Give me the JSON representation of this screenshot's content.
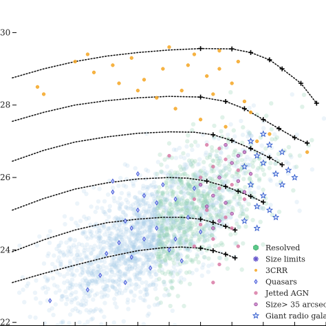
{
  "chart_data": {
    "type": "scatter",
    "title": "",
    "xlabel": "",
    "ylabel": "",
    "y_ticks": [
      22,
      24,
      26,
      28,
      30
    ],
    "y_tick_labels": [
      "22",
      "24",
      "26",
      "28",
      "30"
    ],
    "x_ticks": [
      0.5,
      1.0,
      1.5,
      2.0,
      2.5,
      3.0,
      3.5,
      4.0,
      4.5,
      5.0
    ],
    "ylim": [
      21.9,
      30.9
    ],
    "xlim": [
      0.0,
      5.0
    ],
    "grid": false,
    "legend_placement": "bottom-right",
    "series": [
      {
        "name": "Resolved",
        "marker": "hexagon",
        "color": "#2e9b57"
      },
      {
        "name": "Size limits",
        "marker": "asterisk",
        "color": "#6a5acd"
      },
      {
        "name": "3CRR",
        "marker": "circle",
        "color": "#f5a623"
      },
      {
        "name": "Quasars",
        "marker": "diamond",
        "color": "#3a4fd6"
      },
      {
        "name": "Jetted AGN",
        "marker": "circle",
        "color": "#d97aa6"
      },
      {
        "name": "Size> 35 arcsec",
        "marker": "circle",
        "color": "#8b1a8b"
      },
      {
        "name": "Giant radio galax",
        "marker": "star",
        "color": "#2b55c9"
      }
    ],
    "tracks": [
      {
        "x": [
          0.0,
          0.5,
          1.0,
          1.5,
          2.0,
          2.5,
          3.0,
          3.5,
          3.8,
          4.1,
          4.3,
          4.6,
          4.85
        ],
        "y": [
          28.75,
          29.0,
          29.2,
          29.35,
          29.45,
          29.52,
          29.56,
          29.55,
          29.45,
          29.25,
          29.0,
          28.6,
          28.05
        ]
      },
      {
        "x": [
          0.0,
          0.5,
          1.0,
          1.5,
          2.0,
          2.5,
          3.0,
          3.4,
          3.7,
          4.0,
          4.25,
          4.5,
          4.7
        ],
        "y": [
          27.55,
          27.8,
          28.0,
          28.12,
          28.2,
          28.24,
          28.22,
          28.1,
          27.9,
          27.6,
          27.35,
          27.1,
          26.95
        ]
      },
      {
        "x": [
          0.0,
          0.5,
          1.0,
          1.5,
          2.0,
          2.5,
          2.9,
          3.2,
          3.5,
          3.8,
          4.1,
          4.3
        ],
        "y": [
          26.45,
          26.75,
          26.98,
          27.12,
          27.22,
          27.26,
          27.25,
          27.18,
          27.02,
          26.8,
          26.55,
          26.35
        ]
      },
      {
        "x": [
          0.0,
          0.5,
          1.0,
          1.5,
          2.0,
          2.5,
          2.8,
          3.1,
          3.4,
          3.6,
          3.8,
          4.0
        ],
        "y": [
          25.1,
          25.42,
          25.68,
          25.85,
          25.96,
          26.0,
          25.98,
          25.9,
          25.75,
          25.62,
          25.48,
          25.32
        ]
      },
      {
        "x": [
          0.0,
          0.5,
          1.0,
          1.5,
          2.0,
          2.4,
          2.7,
          3.0,
          3.2,
          3.4,
          3.55
        ],
        "y": [
          23.95,
          24.28,
          24.55,
          24.75,
          24.85,
          24.9,
          24.9,
          24.85,
          24.76,
          24.65,
          24.55
        ]
      },
      {
        "x": [
          0.0,
          0.5,
          1.0,
          1.5,
          2.0,
          2.4,
          2.7,
          3.0,
          3.2,
          3.4,
          3.55
        ],
        "y": [
          23.1,
          23.35,
          23.58,
          23.8,
          23.98,
          24.06,
          24.08,
          24.05,
          23.98,
          23.88,
          23.78
        ]
      }
    ],
    "points": {
      "3CRR": [
        [
          0.4,
          28.5
        ],
        [
          0.5,
          28.3
        ],
        [
          1.0,
          29.2
        ],
        [
          1.3,
          28.9
        ],
        [
          1.6,
          29.1
        ],
        [
          1.9,
          29.3
        ],
        [
          2.1,
          28.7
        ],
        [
          2.4,
          29.0
        ],
        [
          2.7,
          28.4
        ],
        [
          2.9,
          29.4
        ],
        [
          3.1,
          28.8
        ],
        [
          3.3,
          29.0
        ],
        [
          3.5,
          28.6
        ],
        [
          3.6,
          29.2
        ],
        [
          3.8,
          27.8
        ],
        [
          2.3,
          28.2
        ],
        [
          2.6,
          27.9
        ],
        [
          2.0,
          28.4
        ],
        [
          3.0,
          27.6
        ],
        [
          3.4,
          27.4
        ],
        [
          3.7,
          28.1
        ],
        [
          1.7,
          28.6
        ],
        [
          2.8,
          29.1
        ],
        [
          3.2,
          28.3
        ],
        [
          4.1,
          27.2
        ],
        [
          3.9,
          27.0
        ],
        [
          2.5,
          29.6
        ],
        [
          3.3,
          29.5
        ],
        [
          1.2,
          29.4
        ],
        [
          4.7,
          26.7
        ]
      ],
      "Quasars": [
        [
          1.6,
          25.6
        ],
        [
          1.8,
          24.8
        ],
        [
          2.0,
          25.1
        ],
        [
          2.1,
          24.3
        ],
        [
          1.9,
          23.8
        ],
        [
          2.3,
          24.6
        ],
        [
          2.4,
          25.8
        ],
        [
          2.5,
          24.0
        ],
        [
          2.6,
          25.4
        ],
        [
          2.2,
          23.5
        ],
        [
          1.7,
          24.2
        ],
        [
          2.8,
          24.9
        ],
        [
          2.9,
          25.7
        ],
        [
          2.7,
          23.7
        ],
        [
          1.5,
          23.9
        ],
        [
          1.4,
          23.3
        ],
        [
          3.0,
          24.5
        ],
        [
          2.0,
          26.1
        ],
        [
          2.3,
          25.3
        ],
        [
          1.8,
          23.1
        ],
        [
          2.6,
          24.3
        ],
        [
          1.9,
          24.6
        ],
        [
          2.1,
          25.5
        ],
        [
          0.6,
          22.6
        ],
        [
          1.2,
          22.9
        ],
        [
          1.6,
          25.9
        ]
      ],
      "Jetted AGN": [
        [
          2.9,
          25.4
        ],
        [
          3.0,
          26.0
        ],
        [
          3.1,
          25.1
        ],
        [
          3.2,
          26.3
        ],
        [
          3.3,
          25.7
        ],
        [
          3.4,
          26.5
        ],
        [
          3.0,
          24.7
        ],
        [
          3.2,
          24.3
        ],
        [
          3.4,
          24.9
        ],
        [
          3.5,
          25.8
        ],
        [
          3.3,
          26.8
        ],
        [
          3.6,
          26.2
        ],
        [
          3.1,
          26.9
        ],
        [
          3.5,
          24.6
        ],
        [
          2.9,
          24.1
        ],
        [
          3.3,
          23.6
        ],
        [
          3.7,
          25.4
        ],
        [
          3.6,
          24.1
        ],
        [
          2.5,
          26.6
        ],
        [
          3.2,
          23.1
        ]
      ],
      "Size> 35 arcsec": [
        [
          3.0,
          25.8
        ],
        [
          3.2,
          25.5
        ],
        [
          3.3,
          26.0
        ],
        [
          3.4,
          25.3
        ],
        [
          3.5,
          26.4
        ],
        [
          3.6,
          25.9
        ],
        [
          3.7,
          26.7
        ],
        [
          3.5,
          25.0
        ],
        [
          3.3,
          24.8
        ],
        [
          3.8,
          26.1
        ],
        [
          3.1,
          25.2
        ],
        [
          3.4,
          26.9
        ],
        [
          3.6,
          26.6
        ],
        [
          3.2,
          24.6
        ],
        [
          3.7,
          25.6
        ]
      ],
      "Giant radio galax": [
        [
          3.7,
          26.3
        ],
        [
          3.8,
          25.8
        ],
        [
          3.9,
          26.6
        ],
        [
          4.0,
          25.5
        ],
        [
          4.1,
          26.9
        ],
        [
          3.9,
          25.2
        ],
        [
          4.2,
          26.1
        ],
        [
          3.8,
          27.0
        ],
        [
          4.0,
          26.4
        ],
        [
          4.3,
          25.8
        ],
        [
          4.4,
          26.2
        ],
        [
          4.1,
          25.1
        ],
        [
          3.9,
          24.6
        ],
        [
          4.2,
          24.9
        ],
        [
          4.5,
          26.0
        ],
        [
          3.7,
          24.8
        ],
        [
          4.0,
          27.2
        ],
        [
          4.3,
          26.7
        ]
      ]
    }
  }
}
